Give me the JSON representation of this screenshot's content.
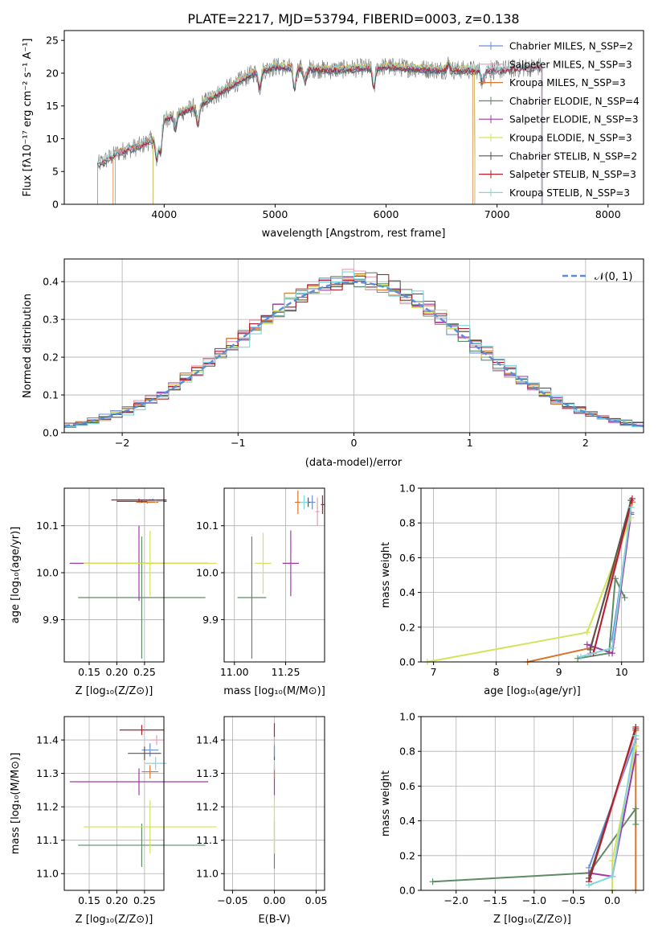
{
  "figure": {
    "title": "PLATE=2217, MJD=53794, FIBERID=0003, z=0.138"
  },
  "colors": {
    "Chabrier MILES": "#6a8fd6",
    "Salpeter MILES": "#e89ab4",
    "Kroupa MILES": "#d9752a",
    "Chabrier ELODIE": "#5f8a66",
    "Salpeter ELODIE": "#a03aa6",
    "Kroupa ELODIE": "#d4e35a",
    "Chabrier STELIB": "#555555",
    "Salpeter STELIB": "#b3202c",
    "Kroupa STELIB": "#7fd6e0",
    "normal": "#5b8dd9"
  },
  "chart_data": [
    {
      "type": "line",
      "title": "PLATE=2217, MJD=53794, FIBERID=0003, z=0.138",
      "xlabel": "wavelength [Angstrom, rest frame]",
      "ylabel": "Flux [fλ10⁻¹⁷ erg cm⁻² s⁻¹ A⁻¹]",
      "xlim": [
        3100,
        8320
      ],
      "ylim": [
        0,
        26.5
      ],
      "xticks": [
        4000,
        5000,
        6000,
        7000,
        8000
      ],
      "yticks": [
        0,
        5,
        10,
        15,
        20,
        25
      ],
      "legend_position": "top-right",
      "series": [
        {
          "name": "Chabrier MILES, N_SSP=2",
          "color_key": "Chabrier MILES"
        },
        {
          "name": "Salpeter MILES, N_SSP=3",
          "color_key": "Salpeter MILES"
        },
        {
          "name": "Kroupa MILES, N_SSP=3",
          "color_key": "Kroupa MILES"
        },
        {
          "name": "Chabrier ELODIE, N_SSP=4",
          "color_key": "Chabrier ELODIE"
        },
        {
          "name": "Salpeter ELODIE, N_SSP=3",
          "color_key": "Salpeter ELODIE"
        },
        {
          "name": "Kroupa ELODIE, N_SSP=3",
          "color_key": "Kroupa ELODIE"
        },
        {
          "name": "Chabrier STELIB, N_SSP=2",
          "color_key": "Chabrier STELIB"
        },
        {
          "name": "Salpeter STELIB, N_SSP=3",
          "color_key": "Salpeter STELIB"
        },
        {
          "name": "Kroupa STELIB, N_SSP=3",
          "color_key": "Kroupa STELIB"
        }
      ],
      "data_shape": [
        {
          "x": 3400,
          "y": 6
        },
        {
          "x": 3600,
          "y": 8
        },
        {
          "x": 3800,
          "y": 9
        },
        {
          "x": 3900,
          "y": 10
        },
        {
          "x": 4000,
          "y": 13
        },
        {
          "x": 4300,
          "y": 15
        },
        {
          "x": 4500,
          "y": 17
        },
        {
          "x": 4800,
          "y": 20
        },
        {
          "x": 5000,
          "y": 21
        },
        {
          "x": 5500,
          "y": 20.5
        },
        {
          "x": 6000,
          "y": 21
        },
        {
          "x": 6500,
          "y": 20.5
        },
        {
          "x": 7000,
          "y": 20.5
        },
        {
          "x": 7400,
          "y": 21
        }
      ],
      "model_ranges": [
        {
          "series": "Chabrier MILES",
          "x0": 3560,
          "x1": 7410
        },
        {
          "series": "Salpeter MILES",
          "x0": 3560,
          "x1": 7410
        },
        {
          "series": "Kroupa MILES",
          "x0": 3540,
          "x1": 6780
        },
        {
          "series": "Chabrier ELODIE",
          "x0": 3900,
          "x1": 6800
        },
        {
          "series": "Salpeter ELODIE",
          "x0": 3900,
          "x1": 6800
        },
        {
          "series": "Kroupa ELODIE",
          "x0": 3900,
          "x1": 6800
        },
        {
          "series": "Chabrier STELIB",
          "x0": 3400,
          "x1": 7400
        },
        {
          "series": "Salpeter STELIB",
          "x0": 3400,
          "x1": 7400
        },
        {
          "series": "Kroupa STELIB",
          "x0": 3400,
          "x1": 7400
        }
      ]
    },
    {
      "type": "line",
      "xlabel": "(data-model)/error",
      "ylabel": "Normed distribution",
      "xlim": [
        -2.5,
        2.5
      ],
      "ylim": [
        0,
        0.46
      ],
      "xticks": [
        -2,
        -1,
        0,
        1,
        2
      ],
      "yticks": [
        0.0,
        0.1,
        0.2,
        0.3,
        0.4
      ],
      "grid": true,
      "legend_position": "top-right",
      "normal_label": "𝒩(0, 1)",
      "note": "step histograms of the normalized residuals for the nine models, plus the standard normal curve"
    },
    {
      "type": "scatter",
      "xlabel": "Z [log₁₀(Z/Z⊙)]",
      "ylabel": "age  [log₁₀(age/yr)]",
      "xlim": [
        0.105,
        0.285
      ],
      "ylim": [
        9.81,
        10.18
      ],
      "xticks": [
        0.15,
        0.2,
        0.25
      ],
      "yticks": [
        9.9,
        10.0,
        10.1
      ],
      "grid": true,
      "points": [
        {
          "series": "Chabrier MILES",
          "x": 0.265,
          "y": 10.155,
          "xerr": 0.015,
          "yerr": 0.003
        },
        {
          "series": "Salpeter MILES",
          "x": 0.26,
          "y": 10.155,
          "xerr": 0.02,
          "yerr": 0.003
        },
        {
          "series": "Kroupa MILES",
          "x": 0.255,
          "y": 10.15,
          "xerr": 0.02,
          "yerr": 0.003
        },
        {
          "series": "Chabrier ELODIE",
          "x": 0.245,
          "y": 9.947,
          "xerr": 0.115,
          "yerr": 0.13
        },
        {
          "series": "Salpeter ELODIE",
          "x": 0.24,
          "y": 10.02,
          "xerr": 0.125,
          "yerr": 0.08
        },
        {
          "series": "Kroupa ELODIE",
          "x": 0.26,
          "y": 10.02,
          "xerr": 0.12,
          "yerr": 0.07
        },
        {
          "series": "Chabrier STELIB",
          "x": 0.245,
          "y": 10.152,
          "xerr": 0.045,
          "yerr": 0.003
        },
        {
          "series": "Salpeter STELIB",
          "x": 0.24,
          "y": 10.155,
          "xerr": 0.05,
          "yerr": 0.003
        },
        {
          "series": "Kroupa STELIB",
          "x": 0.27,
          "y": 10.152,
          "xerr": 0.015,
          "yerr": 0.003
        }
      ]
    },
    {
      "type": "scatter",
      "xlabel": "mass [log₁₀(M/M⊙)]",
      "ylabel": "",
      "xlim": [
        10.95,
        11.44
      ],
      "ylim": [
        9.81,
        10.18
      ],
      "xticks": [
        11.0,
        11.25
      ],
      "yticks": [
        9.9,
        10.0,
        10.1
      ],
      "grid": true,
      "points": [
        {
          "series": "Chabrier MILES",
          "x": 11.38,
          "y": 10.15,
          "xerr": 0.015,
          "yerr": 0.015
        },
        {
          "series": "Salpeter MILES",
          "x": 11.405,
          "y": 10.13,
          "xerr": 0.01,
          "yerr": 0.03
        },
        {
          "series": "Kroupa MILES",
          "x": 11.31,
          "y": 10.15,
          "xerr": 0.015,
          "yerr": 0.025
        },
        {
          "series": "Chabrier ELODIE",
          "x": 11.085,
          "y": 9.947,
          "xerr": 0.07,
          "yerr": 0.13
        },
        {
          "series": "Salpeter ELODIE",
          "x": 11.275,
          "y": 10.02,
          "xerr": 0.04,
          "yerr": 0.07
        },
        {
          "series": "Kroupa ELODIE",
          "x": 11.14,
          "y": 10.02,
          "xerr": 0.04,
          "yerr": 0.065
        },
        {
          "series": "Chabrier STELIB",
          "x": 11.36,
          "y": 10.15,
          "xerr": 0.01,
          "yerr": 0.01
        },
        {
          "series": "Salpeter STELIB",
          "x": 11.43,
          "y": 10.145,
          "xerr": 0.008,
          "yerr": 0.02
        },
        {
          "series": "Kroupa STELIB",
          "x": 11.34,
          "y": 10.15,
          "xerr": 0.02,
          "yerr": 0.015
        }
      ]
    },
    {
      "type": "line",
      "xlabel": "age  [log₁₀(age/yr)]",
      "ylabel": "mass weight",
      "xlim": [
        6.8,
        10.35
      ],
      "ylim": [
        0,
        1.0
      ],
      "xticks": [
        7,
        8,
        9,
        10
      ],
      "yticks": [
        0.0,
        0.2,
        0.4,
        0.6,
        0.8,
        1.0
      ],
      "grid": true,
      "series": [
        {
          "color_key": "Chabrier MILES",
          "points": [
            [
              9.85,
              0.13
            ],
            [
              10.15,
              0.86
            ]
          ]
        },
        {
          "color_key": "Salpeter MILES",
          "points": [
            [
              9.5,
              0.05
            ],
            [
              9.55,
              0.05
            ],
            [
              10.17,
              0.92
            ]
          ]
        },
        {
          "color_key": "Kroupa MILES",
          "points": [
            [
              8.5,
              0.0
            ],
            [
              9.5,
              0.08
            ],
            [
              10.17,
              0.92
            ]
          ]
        },
        {
          "color_key": "Chabrier ELODIE",
          "points": [
            [
              9.3,
              0.02
            ],
            [
              9.8,
              0.05
            ],
            [
              9.9,
              0.48
            ],
            [
              10.05,
              0.37
            ]
          ]
        },
        {
          "color_key": "Salpeter ELODIE",
          "points": [
            [
              9.45,
              0.1
            ],
            [
              9.85,
              0.05
            ],
            [
              10.15,
              0.85
            ]
          ]
        },
        {
          "color_key": "Kroupa ELODIE",
          "points": [
            [
              6.9,
              0.0
            ],
            [
              9.45,
              0.17
            ],
            [
              10.15,
              0.83
            ]
          ]
        },
        {
          "color_key": "Chabrier STELIB",
          "points": [
            [
              9.5,
              0.07
            ],
            [
              10.15,
              0.93
            ]
          ]
        },
        {
          "color_key": "Salpeter STELIB",
          "points": [
            [
              9.55,
              0.05
            ],
            [
              10.17,
              0.94
            ]
          ]
        },
        {
          "color_key": "Kroupa STELIB",
          "points": [
            [
              9.35,
              0.03
            ],
            [
              9.85,
              0.08
            ],
            [
              10.15,
              0.89
            ]
          ]
        }
      ]
    },
    {
      "type": "scatter",
      "xlabel": "Z [log₁₀(Z/Z⊙)]",
      "ylabel": "mass [log₁₀(M/M⊙)]",
      "xlim": [
        0.105,
        0.285
      ],
      "ylim": [
        10.95,
        11.47
      ],
      "xticks": [
        0.15,
        0.2,
        0.25
      ],
      "yticks": [
        11.0,
        11.1,
        11.2,
        11.3,
        11.4
      ],
      "grid": true,
      "points": [
        {
          "series": "Chabrier MILES",
          "x": 0.26,
          "y": 11.37,
          "xerr": 0.015,
          "yerr": 0.02
        },
        {
          "series": "Salpeter MILES",
          "x": 0.272,
          "y": 11.4,
          "xerr": 0.012,
          "yerr": 0.015
        },
        {
          "series": "Kroupa MILES",
          "x": 0.26,
          "y": 11.305,
          "xerr": 0.015,
          "yerr": 0.02
        },
        {
          "series": "Chabrier ELODIE",
          "x": 0.245,
          "y": 11.085,
          "xerr": 0.115,
          "yerr": 0.065
        },
        {
          "series": "Salpeter ELODIE",
          "x": 0.24,
          "y": 11.275,
          "xerr": 0.125,
          "yerr": 0.04
        },
        {
          "series": "Kroupa ELODIE",
          "x": 0.26,
          "y": 11.14,
          "xerr": 0.12,
          "yerr": 0.08
        },
        {
          "series": "Chabrier STELIB",
          "x": 0.25,
          "y": 11.36,
          "xerr": 0.03,
          "yerr": 0.02
        },
        {
          "series": "Salpeter STELIB",
          "x": 0.245,
          "y": 11.43,
          "xerr": 0.04,
          "yerr": 0.015
        },
        {
          "series": "Kroupa STELIB",
          "x": 0.27,
          "y": 11.33,
          "xerr": 0.02,
          "yerr": 0.02
        }
      ]
    },
    {
      "type": "scatter",
      "xlabel": "E(B-V)",
      "ylabel": "",
      "xlim": [
        -0.06,
        0.06
      ],
      "ylim": [
        10.95,
        11.47
      ],
      "xticks": [
        -0.05,
        0.0,
        0.05
      ],
      "yticks": [
        11.0,
        11.1,
        11.2,
        11.3,
        11.4
      ],
      "grid": true,
      "points": [
        {
          "series": "Chabrier ELODIE",
          "x": 0.0,
          "y": 11.085,
          "yerr": 0.07
        },
        {
          "series": "Kroupa ELODIE",
          "x": 0.0,
          "y": 11.14,
          "yerr": 0.08
        },
        {
          "series": "Salpeter ELODIE",
          "x": 0.0,
          "y": 11.275,
          "yerr": 0.04
        },
        {
          "series": "Kroupa MILES",
          "x": 0.0,
          "y": 11.305,
          "yerr": 0.02
        },
        {
          "series": "Kroupa STELIB",
          "x": 0.0,
          "y": 11.33,
          "yerr": 0.02
        },
        {
          "series": "Chabrier STELIB",
          "x": 0.0,
          "y": 11.36,
          "yerr": 0.02
        },
        {
          "series": "Chabrier MILES",
          "x": 0.0,
          "y": 11.37,
          "yerr": 0.02
        },
        {
          "series": "Salpeter MILES",
          "x": 0.0,
          "y": 11.4,
          "yerr": 0.015
        },
        {
          "series": "Salpeter STELIB",
          "x": 0.0,
          "y": 11.43,
          "yerr": 0.02
        }
      ]
    },
    {
      "type": "line",
      "xlabel": "Z [log₁₀(Z/Z⊙)]",
      "ylabel": "mass weight",
      "xlim": [
        -2.45,
        0.4
      ],
      "ylim": [
        0,
        1.0
      ],
      "xticks": [
        -2.0,
        -1.5,
        -1.0,
        -0.5,
        0.0
      ],
      "yticks": [
        0.0,
        0.2,
        0.4,
        0.6,
        0.8,
        1.0
      ],
      "grid": true,
      "series": [
        {
          "color_key": "Chabrier MILES",
          "points": [
            [
              -0.3,
              0.13
            ],
            [
              0.3,
              0.87
            ]
          ]
        },
        {
          "color_key": "Salpeter MILES",
          "points": [
            [
              -0.3,
              0.05
            ],
            [
              0.3,
              0.92
            ]
          ]
        },
        {
          "color_key": "Kroupa MILES",
          "points": [
            [
              0.3,
              0.0
            ],
            [
              0.3,
              0.92
            ]
          ]
        },
        {
          "color_key": "Chabrier ELODIE",
          "points": [
            [
              -2.3,
              0.05
            ],
            [
              -0.3,
              0.1
            ],
            [
              0.3,
              0.47
            ],
            [
              0.3,
              0.38
            ]
          ]
        },
        {
          "color_key": "Salpeter ELODIE",
          "points": [
            [
              -0.3,
              0.1
            ],
            [
              0.0,
              0.08
            ],
            [
              0.3,
              0.78
            ]
          ]
        },
        {
          "color_key": "Kroupa ELODIE",
          "points": [
            [
              0.0,
              0.0
            ],
            [
              0.0,
              0.17
            ],
            [
              0.3,
              0.83
            ]
          ]
        },
        {
          "color_key": "Chabrier STELIB",
          "points": [
            [
              -0.3,
              0.07
            ],
            [
              0.3,
              0.93
            ]
          ]
        },
        {
          "color_key": "Salpeter STELIB",
          "points": [
            [
              -0.3,
              0.05
            ],
            [
              0.3,
              0.94
            ]
          ]
        },
        {
          "color_key": "Kroupa STELIB",
          "points": [
            [
              -0.3,
              0.03
            ],
            [
              0.0,
              0.08
            ],
            [
              0.3,
              0.89
            ]
          ]
        }
      ]
    }
  ]
}
